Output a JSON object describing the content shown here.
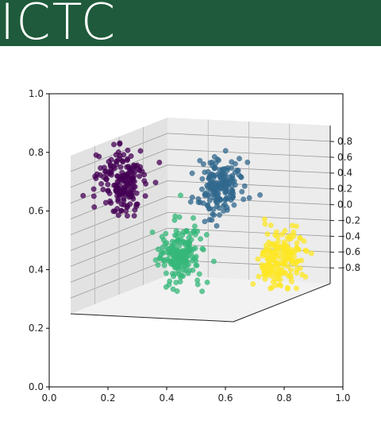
{
  "banner": {
    "title": "ICTC",
    "color": "#1e5a3b"
  },
  "chart_data": {
    "type": "scatter",
    "projection": "3d",
    "title": "",
    "xlabel": "",
    "ylabel": "",
    "zlabel": "",
    "outer_axes": {
      "x_ticks": [
        "0.0",
        "0.2",
        "0.4",
        "0.6",
        "0.8",
        "1.0"
      ],
      "y_ticks": [
        "0.0",
        "0.2",
        "0.4",
        "0.6",
        "0.8",
        "1.0"
      ],
      "xlim": [
        0,
        1
      ],
      "ylim": [
        0,
        1
      ]
    },
    "z_axis": {
      "ticks": [
        "0.8",
        "0.6",
        "0.4",
        "0.2",
        "0.0",
        "−0.2",
        "−0.4",
        "−0.6",
        "−0.8"
      ],
      "zlim": [
        -0.9,
        0.9
      ]
    },
    "grid": true,
    "legend": "none",
    "clusters": [
      {
        "color": "#440154",
        "center": [
          -0.6,
          -0.6,
          0.6
        ],
        "spread": 0.12,
        "count": 180
      },
      {
        "color": "#31688e",
        "center": [
          0.6,
          -0.6,
          0.6
        ],
        "spread": 0.12,
        "count": 180
      },
      {
        "color": "#35b779",
        "center": [
          -0.6,
          0.6,
          -0.6
        ],
        "spread": 0.12,
        "count": 180
      },
      {
        "color": "#fde725",
        "center": [
          0.6,
          0.6,
          -0.6
        ],
        "spread": 0.12,
        "count": 180
      }
    ]
  }
}
